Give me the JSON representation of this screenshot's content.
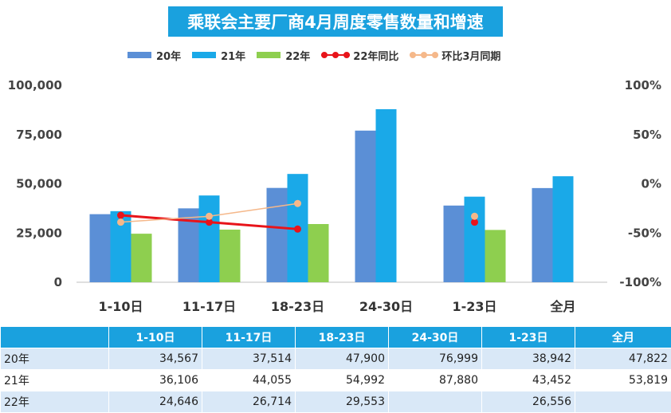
{
  "colors": {
    "s20": "#5b8fd6",
    "s21": "#1aa9e8",
    "s22": "#8ecf4f",
    "yoy": "#e8141a",
    "mom": "#f5b88a",
    "title_bg": "#1aa1de"
  },
  "chart_data": {
    "type": "bar",
    "title": "乘联会主要厂商4月周度零售数量和增速",
    "categories": [
      "1-10日",
      "11-17日",
      "18-23日",
      "24-30日",
      "1-23日",
      "全月"
    ],
    "series": [
      {
        "name": "20年",
        "values": [
          34567,
          37514,
          47900,
          76999,
          38942,
          47822
        ]
      },
      {
        "name": "21年",
        "values": [
          36106,
          44055,
          54992,
          87880,
          43452,
          53819
        ]
      },
      {
        "name": "22年",
        "values": [
          24646,
          26714,
          29553,
          null,
          26556,
          null
        ]
      }
    ],
    "line_series": [
      {
        "name": "22年同比",
        "axis": "right",
        "values": [
          -32,
          -39,
          -46,
          null,
          -39,
          null
        ]
      },
      {
        "name": "环比3月同期",
        "axis": "right",
        "values": [
          -39,
          -33,
          -20,
          null,
          -33,
          null
        ]
      }
    ],
    "left_axis": {
      "ylim": [
        0,
        100000
      ],
      "ticks": [
        "0",
        "25,000",
        "50,000",
        "75,000",
        "100,000"
      ]
    },
    "right_axis": {
      "ylim": [
        -100,
        100
      ],
      "ticks": [
        "-100%",
        "-50%",
        "0%",
        "50%",
        "100%"
      ]
    },
    "legend_position": "top",
    "grid": false
  },
  "legend_labels": [
    "20年",
    "21年",
    "22年",
    "22年同比",
    "环比3月同期"
  ],
  "table": {
    "corner": "",
    "headers": [
      "1-10日",
      "11-17日",
      "18-23日",
      "24-30日",
      "1-23日",
      "全月"
    ],
    "rows": [
      {
        "label": "20年",
        "cells": [
          "34,567",
          "37,514",
          "47,900",
          "76,999",
          "38,942",
          "47,822"
        ]
      },
      {
        "label": "21年",
        "cells": [
          "36,106",
          "44,055",
          "54,992",
          "87,880",
          "43,452",
          "53,819"
        ]
      },
      {
        "label": "22年",
        "cells": [
          "24,646",
          "26,714",
          "29,553",
          "",
          "26,556",
          ""
        ]
      }
    ]
  }
}
